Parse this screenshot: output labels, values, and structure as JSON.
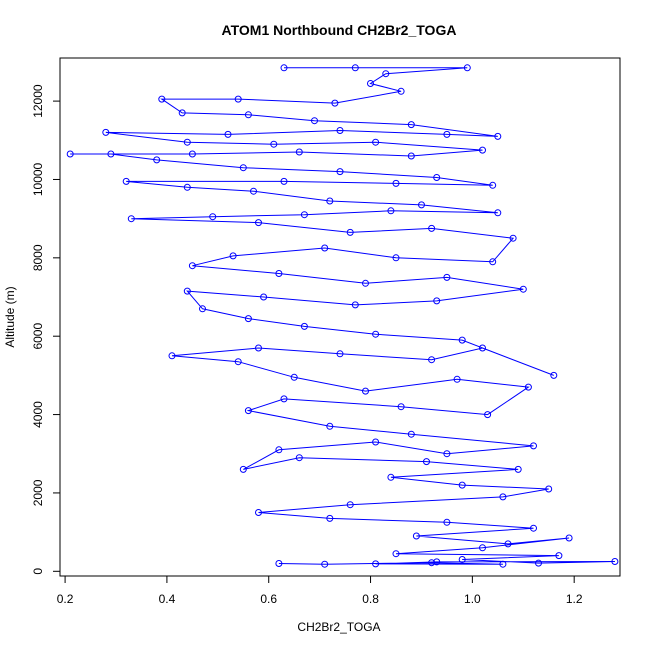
{
  "chart_data": {
    "type": "scatter",
    "title": "ATOM1 Northbound CH2Br2_TOGA",
    "xlabel": "CH2Br2_TOGA",
    "ylabel": "Altitude (m)",
    "xlim": [
      0.19,
      1.29
    ],
    "ylim": [
      -120,
      13100
    ],
    "xticks": [
      0.2,
      0.4,
      0.6,
      0.8,
      1.0,
      1.2
    ],
    "xtick_labels": [
      "0.2",
      "0.4",
      "0.6",
      "0.8",
      "1.0",
      "1.2"
    ],
    "yticks": [
      0,
      2000,
      4000,
      6000,
      8000,
      10000,
      12000
    ],
    "ytick_labels": [
      "0",
      "2000",
      "4000",
      "6000",
      "8000",
      "10000",
      "12000"
    ],
    "grid": false,
    "series": [
      {
        "color": "#0000ff",
        "marker": "open-circle",
        "connected": true,
        "points": [
          [
            0.62,
            200
          ],
          [
            0.71,
            180
          ],
          [
            0.92,
            220
          ],
          [
            1.06,
            180
          ],
          [
            0.81,
            190
          ],
          [
            0.93,
            240
          ],
          [
            1.28,
            250
          ],
          [
            1.13,
            210
          ],
          [
            0.98,
            300
          ],
          [
            1.17,
            400
          ],
          [
            0.85,
            450
          ],
          [
            1.02,
            600
          ],
          [
            1.19,
            850
          ],
          [
            1.07,
            700
          ],
          [
            0.89,
            900
          ],
          [
            1.12,
            1100
          ],
          [
            0.95,
            1250
          ],
          [
            0.72,
            1350
          ],
          [
            0.58,
            1500
          ],
          [
            0.76,
            1700
          ],
          [
            1.06,
            1900
          ],
          [
            1.15,
            2100
          ],
          [
            0.98,
            2200
          ],
          [
            0.84,
            2400
          ],
          [
            1.09,
            2600
          ],
          [
            0.91,
            2800
          ],
          [
            0.66,
            2900
          ],
          [
            0.55,
            2600
          ],
          [
            0.62,
            3100
          ],
          [
            0.81,
            3300
          ],
          [
            0.95,
            3000
          ],
          [
            1.12,
            3200
          ],
          [
            0.88,
            3500
          ],
          [
            0.72,
            3700
          ],
          [
            0.56,
            4100
          ],
          [
            0.63,
            4400
          ],
          [
            0.86,
            4200
          ],
          [
            1.03,
            4000
          ],
          [
            1.11,
            4700
          ],
          [
            0.97,
            4900
          ],
          [
            0.79,
            4600
          ],
          [
            0.65,
            4950
          ],
          [
            0.54,
            5350
          ],
          [
            0.41,
            5500
          ],
          [
            0.58,
            5700
          ],
          [
            0.74,
            5550
          ],
          [
            0.92,
            5400
          ],
          [
            1.02,
            5700
          ],
          [
            1.16,
            5000
          ],
          [
            0.98,
            5900
          ],
          [
            0.81,
            6050
          ],
          [
            0.67,
            6250
          ],
          [
            0.56,
            6450
          ],
          [
            0.47,
            6700
          ],
          [
            0.44,
            7150
          ],
          [
            0.59,
            7000
          ],
          [
            0.77,
            6800
          ],
          [
            0.93,
            6900
          ],
          [
            1.1,
            7200
          ],
          [
            0.95,
            7500
          ],
          [
            0.79,
            7350
          ],
          [
            0.62,
            7600
          ],
          [
            0.45,
            7800
          ],
          [
            0.53,
            8050
          ],
          [
            0.71,
            8250
          ],
          [
            0.85,
            8000
          ],
          [
            1.04,
            7900
          ],
          [
            1.08,
            8500
          ],
          [
            0.92,
            8750
          ],
          [
            0.76,
            8650
          ],
          [
            0.58,
            8900
          ],
          [
            0.33,
            9000
          ],
          [
            0.49,
            9050
          ],
          [
            0.67,
            9100
          ],
          [
            0.84,
            9200
          ],
          [
            1.05,
            9150
          ],
          [
            0.9,
            9350
          ],
          [
            0.72,
            9450
          ],
          [
            0.57,
            9700
          ],
          [
            0.44,
            9800
          ],
          [
            0.32,
            9950
          ],
          [
            0.63,
            9950
          ],
          [
            0.85,
            9900
          ],
          [
            1.04,
            9850
          ],
          [
            0.93,
            10050
          ],
          [
            0.74,
            10200
          ],
          [
            0.55,
            10300
          ],
          [
            0.38,
            10500
          ],
          [
            0.29,
            10650
          ],
          [
            0.21,
            10650
          ],
          [
            0.45,
            10650
          ],
          [
            0.66,
            10700
          ],
          [
            0.88,
            10600
          ],
          [
            1.02,
            10750
          ],
          [
            0.81,
            10950
          ],
          [
            0.61,
            10900
          ],
          [
            0.44,
            10950
          ],
          [
            0.28,
            11200
          ],
          [
            0.52,
            11150
          ],
          [
            0.74,
            11250
          ],
          [
            0.95,
            11150
          ],
          [
            1.05,
            11100
          ],
          [
            0.88,
            11400
          ],
          [
            0.69,
            11500
          ],
          [
            0.56,
            11650
          ],
          [
            0.43,
            11700
          ],
          [
            0.39,
            12050
          ],
          [
            0.54,
            12050
          ],
          [
            0.73,
            11950
          ],
          [
            0.86,
            12250
          ],
          [
            0.8,
            12450
          ],
          [
            0.83,
            12700
          ],
          [
            0.99,
            12850
          ],
          [
            0.77,
            12850
          ],
          [
            0.63,
            12850
          ]
        ]
      }
    ]
  }
}
